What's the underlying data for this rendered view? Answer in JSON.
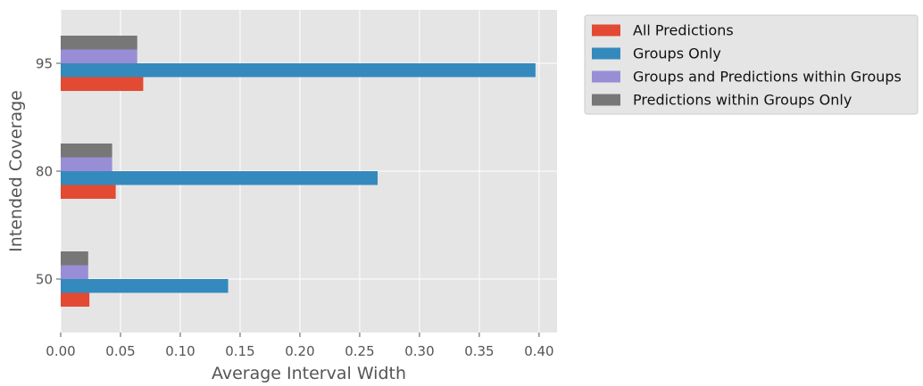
{
  "chart_data": {
    "type": "bar",
    "orientation": "horizontal",
    "categories": [
      "50",
      "80",
      "95"
    ],
    "series": [
      {
        "name": "All Predictions",
        "values": [
          0.024,
          0.046,
          0.069
        ],
        "color": "#E24A33"
      },
      {
        "name": "Groups Only",
        "values": [
          0.14,
          0.265,
          0.397
        ],
        "color": "#348ABD"
      },
      {
        "name": "Groups and Predictions within Groups",
        "values": [
          0.023,
          0.043,
          0.064
        ],
        "color": "#988ED5"
      },
      {
        "name": "Predictions within Groups Only",
        "values": [
          0.023,
          0.043,
          0.064
        ],
        "color": "#777777"
      }
    ],
    "xlabel": "Average Interval Width",
    "ylabel": "Intended Coverage",
    "xlim": [
      0,
      0.415
    ],
    "xticks": [
      "0.00",
      "0.05",
      "0.10",
      "0.15",
      "0.20",
      "0.25",
      "0.30",
      "0.35",
      "0.40"
    ],
    "grid": true,
    "legend_position": "outside-upper-right",
    "style": "ggplot"
  }
}
